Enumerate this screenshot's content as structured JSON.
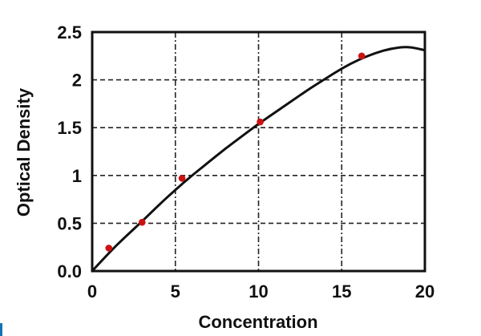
{
  "chart_data": {
    "type": "scatter",
    "title": "",
    "xlabel": "Concentration",
    "ylabel": "Optical Density",
    "xlim": [
      0,
      20
    ],
    "ylim": [
      0,
      2.5
    ],
    "x_ticks": [
      0,
      5,
      10,
      15,
      20
    ],
    "x_tick_labels": [
      "0",
      "5",
      "10",
      "15",
      "20"
    ],
    "y_ticks": [
      0,
      0.5,
      1,
      1.5,
      2,
      2.5
    ],
    "y_tick_labels": [
      "0.0",
      "0.5",
      "1",
      "1.5",
      "2",
      "2.5"
    ],
    "grid": true,
    "legend": "none",
    "points": [
      {
        "x": 1.0,
        "y": 0.24
      },
      {
        "x": 3.0,
        "y": 0.51
      },
      {
        "x": 5.4,
        "y": 0.97
      },
      {
        "x": 10.1,
        "y": 1.56
      },
      {
        "x": 16.2,
        "y": 2.25
      }
    ],
    "curve": {
      "name": "fitted-standard-curve",
      "x": [
        0,
        1,
        2,
        3,
        4,
        5,
        6,
        7,
        8,
        9,
        10,
        11,
        12,
        13,
        14,
        15,
        16,
        17,
        18,
        19,
        20
      ],
      "y": [
        0.0,
        0.19,
        0.36,
        0.52,
        0.69,
        0.85,
        1.0,
        1.14,
        1.28,
        1.41,
        1.54,
        1.66,
        1.78,
        1.9,
        2.01,
        2.12,
        2.21,
        2.28,
        2.33,
        2.35,
        2.31
      ]
    },
    "colors": {
      "point": "#cc1111",
      "curve": "#111111",
      "grid": "#222222",
      "frame": "#111111",
      "background": "#ffffff"
    }
  },
  "decorations": {
    "edge_bar_color": "#1272b6"
  }
}
